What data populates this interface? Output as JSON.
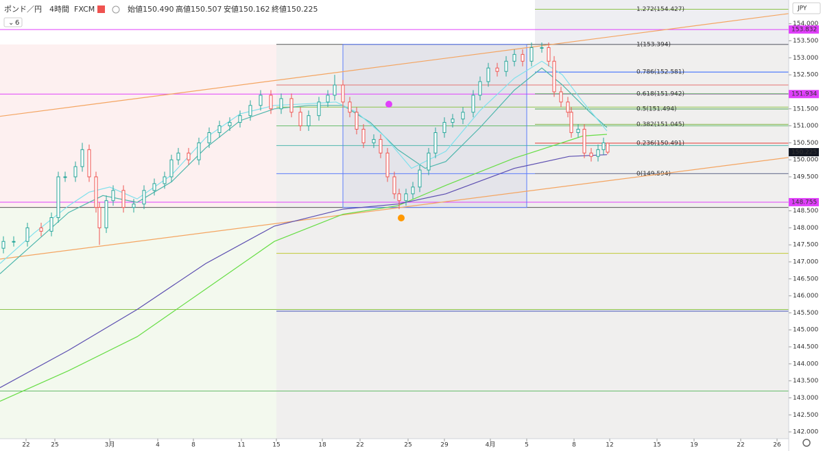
{
  "chart_data": {
    "type": "candlestick",
    "header": {
      "symbol": "ポンド／円",
      "interval": "4時間",
      "source": "FXCM",
      "indicators": "6",
      "currency": "JPY",
      "ohlc": [
        {
          "name": "始値",
          "value": "150.490"
        },
        {
          "name": "高値",
          "value": "150.507"
        },
        {
          "name": "安値",
          "value": "150.162"
        },
        {
          "name": "終値",
          "value": "150.225"
        }
      ]
    },
    "xlim": [
      0,
      230
    ],
    "ylim": [
      141.8,
      154.7
    ],
    "xticks": [
      {
        "value": 7.6,
        "label": "22"
      },
      {
        "value": 16,
        "label": "25"
      },
      {
        "value": 32,
        "label": "3月"
      },
      {
        "value": 46,
        "label": "4"
      },
      {
        "value": 56.4,
        "label": "8"
      },
      {
        "value": 70.4,
        "label": "11"
      },
      {
        "value": 80.6,
        "label": "15"
      },
      {
        "value": 94,
        "label": "18"
      },
      {
        "value": 105,
        "label": "22"
      },
      {
        "value": 119,
        "label": "25"
      },
      {
        "value": 129.6,
        "label": "29"
      },
      {
        "value": 143,
        "label": "4月"
      },
      {
        "value": 153.6,
        "label": "5"
      },
      {
        "value": 167.4,
        "label": "8"
      },
      {
        "value": 177.8,
        "label": "12"
      },
      {
        "value": 191.6,
        "label": "15"
      },
      {
        "value": 202.4,
        "label": "19"
      },
      {
        "value": 216,
        "label": "22"
      },
      {
        "value": 226.6,
        "label": "26"
      }
    ],
    "yticks": [
      {
        "value": 142,
        "label": "142.000"
      },
      {
        "value": 142.5,
        "label": "142.500"
      },
      {
        "value": 143,
        "label": "143.000"
      },
      {
        "value": 143.5,
        "label": "143.500"
      },
      {
        "value": 144,
        "label": "144.000"
      },
      {
        "value": 144.5,
        "label": "144.500"
      },
      {
        "value": 145,
        "label": "145.000"
      },
      {
        "value": 145.5,
        "label": "145.500"
      },
      {
        "value": 146,
        "label": "146.000"
      },
      {
        "value": 146.5,
        "label": "146.500"
      },
      {
        "value": 147,
        "label": "147.000"
      },
      {
        "value": 147.5,
        "label": "147.500"
      },
      {
        "value": 148,
        "label": "148.000"
      },
      {
        "value": 148.5,
        "label": "148.500"
      },
      {
        "value": 149.5,
        "label": "149.500"
      },
      {
        "value": 150,
        "label": "150.000"
      },
      {
        "value": 150.5,
        "label": "150.500"
      },
      {
        "value": 151,
        "label": "151.000"
      },
      {
        "value": 151.5,
        "label": "151.500"
      },
      {
        "value": 152.5,
        "label": "152.500"
      },
      {
        "value": 153,
        "label": "153.000"
      },
      {
        "value": 153.5,
        "label": "153.500"
      },
      {
        "value": 154,
        "label": "154.000"
      }
    ],
    "up_color": "#26a69a",
    "down_color": "#ef5350",
    "x": [
      1,
      4,
      8,
      12,
      15,
      17,
      19,
      22,
      24,
      26,
      28,
      29,
      31,
      33,
      36,
      39,
      42,
      45,
      48,
      50,
      52,
      55,
      58,
      61,
      64,
      67,
      70,
      73,
      76,
      79,
      82,
      85,
      87.6,
      90,
      93,
      95.6,
      97.6,
      100,
      102,
      104,
      106,
      109,
      111,
      113,
      115,
      116.4,
      118.4,
      120.4,
      122.4,
      125,
      127,
      129.6,
      132,
      135,
      138,
      140,
      142.4,
      145,
      147.6,
      150,
      152.4,
      155,
      158,
      160,
      161.6,
      163.6,
      165.6,
      166.6,
      168.6,
      170.4,
      172.4,
      174.4,
      176,
      177.2
    ],
    "open": [
      147.4,
      147.6,
      147.6,
      148.0,
      147.9,
      148.3,
      149.5,
      149.5,
      149.8,
      150.3,
      149.5,
      148.6,
      148.0,
      148.8,
      149.1,
      148.6,
      148.7,
      149.1,
      149.3,
      149.5,
      150.0,
      150.2,
      150.0,
      150.5,
      150.8,
      151.0,
      151.1,
      151.3,
      151.6,
      151.9,
      151.5,
      151.8,
      151.4,
      151.0,
      151.3,
      151.7,
      151.9,
      152.2,
      151.7,
      151.4,
      150.9,
      150.5,
      150.6,
      150.2,
      149.5,
      149.0,
      148.8,
      149.0,
      149.2,
      149.7,
      150.2,
      150.8,
      151.1,
      151.2,
      151.4,
      151.9,
      152.3,
      152.7,
      152.6,
      152.9,
      153.1,
      152.9,
      153.3,
      153.3,
      152.9,
      152.0,
      151.7,
      151.4,
      150.8,
      150.9,
      150.2,
      150.1,
      150.3,
      150.49
    ],
    "high": [
      147.75,
      147.75,
      148.15,
      148.15,
      148.45,
      149.65,
      149.65,
      149.95,
      150.5,
      150.45,
      149.65,
      148.75,
      148.95,
      149.25,
      149.25,
      148.85,
      149.25,
      149.45,
      149.65,
      150.15,
      150.35,
      150.35,
      150.65,
      150.95,
      151.15,
      151.25,
      151.45,
      151.75,
      152.05,
      152.05,
      151.95,
      151.95,
      151.55,
      151.45,
      151.85,
      152.05,
      152.5,
      152.35,
      151.85,
      151.55,
      151.05,
      150.75,
      150.75,
      150.35,
      149.65,
      149.15,
      149.15,
      149.35,
      149.85,
      150.35,
      150.95,
      151.25,
      151.35,
      151.55,
      152.05,
      152.45,
      152.85,
      152.85,
      153.05,
      153.25,
      153.25,
      153.45,
      153.45,
      153.45,
      153.05,
      152.15,
      151.85,
      151.55,
      151.05,
      151.05,
      150.35,
      150.45,
      150.65,
      150.507
    ],
    "low": [
      147.25,
      147.45,
      147.45,
      147.75,
      147.75,
      148.15,
      149.35,
      149.35,
      149.65,
      149.35,
      148.45,
      147.5,
      147.85,
      148.65,
      148.45,
      148.45,
      148.55,
      148.95,
      149.15,
      149.35,
      149.85,
      149.85,
      149.85,
      150.35,
      150.65,
      150.85,
      150.95,
      151.15,
      151.45,
      151.35,
      151.35,
      151.25,
      150.85,
      150.85,
      151.15,
      151.55,
      151.75,
      151.55,
      151.25,
      150.75,
      150.35,
      150.35,
      150.05,
      149.35,
      148.85,
      148.55,
      148.65,
      148.85,
      149.05,
      149.55,
      150.05,
      150.65,
      150.95,
      151.05,
      151.25,
      151.75,
      152.15,
      152.45,
      152.45,
      152.75,
      152.75,
      152.75,
      153.15,
      152.75,
      151.85,
      151.55,
      151.25,
      150.65,
      150.65,
      150.05,
      149.95,
      149.95,
      150.15,
      150.162
    ],
    "close": [
      147.6,
      147.6,
      148.0,
      147.9,
      148.3,
      149.5,
      149.5,
      149.8,
      150.3,
      149.5,
      148.6,
      148.0,
      148.8,
      149.1,
      148.6,
      148.7,
      149.1,
      149.3,
      149.5,
      150.0,
      150.2,
      150.0,
      150.5,
      150.8,
      151.0,
      151.1,
      151.3,
      151.6,
      151.9,
      151.5,
      151.8,
      151.4,
      151.0,
      151.3,
      151.7,
      151.9,
      152.2,
      151.7,
      151.4,
      150.9,
      150.5,
      150.6,
      150.2,
      149.5,
      149.0,
      148.8,
      149.0,
      149.2,
      149.7,
      150.2,
      150.8,
      151.1,
      151.2,
      151.4,
      151.9,
      152.3,
      152.7,
      152.6,
      152.9,
      153.1,
      152.9,
      153.3,
      153.3,
      152.9,
      152.0,
      151.7,
      151.4,
      150.8,
      150.9,
      150.2,
      150.1,
      150.3,
      150.5,
      150.225
    ],
    "zones": [
      {
        "x": [
          0,
          230
        ],
        "y": [
          148.6,
          153.394
        ],
        "color": "#fdf0f0"
      },
      {
        "x": [
          0,
          230
        ],
        "y": [
          141.8,
          148.6
        ],
        "color": "#f3f9ee"
      },
      {
        "x": [
          80.6,
          230
        ],
        "y": [
          141.8,
          153.394
        ],
        "color": "#f0efee"
      },
      {
        "x": [
          156,
          230
        ],
        "y": [
          153.394,
          154.7
        ],
        "color": "#eeeef2"
      },
      {
        "x": [
          100,
          153.6
        ],
        "y": [
          148.6,
          153.394
        ],
        "color": "#e4e4ea"
      }
    ],
    "hlines": [
      {
        "value": 153.394,
        "from": 80.6,
        "color": "#555555"
      },
      {
        "value": 148.6,
        "from": 0,
        "color": "#555555"
      },
      {
        "value": 152.2,
        "from": 80.6,
        "color": "#e57373"
      },
      {
        "value": 151.55,
        "from": 80.6,
        "color": "#8bc34a"
      },
      {
        "value": 151.0,
        "from": 80.6,
        "color": "#66bb6a"
      },
      {
        "value": 150.42,
        "from": 80.6,
        "color": "#4db6ac"
      },
      {
        "value": 149.594,
        "from": 80.6,
        "color": "#5c7cfa"
      },
      {
        "value": 147.25,
        "from": 80.6,
        "color": "#c0ca33"
      },
      {
        "value": 145.55,
        "from": 80.6,
        "color": "#3f51b5"
      },
      {
        "value": 145.6,
        "from": 0,
        "color": "#8bc34a"
      },
      {
        "value": 143.2,
        "from": 0,
        "color": "#66bb6a"
      },
      {
        "value": 153.832,
        "from": 0,
        "color": "#e040fb"
      },
      {
        "value": 151.934,
        "from": 0,
        "color": "#e040fb"
      },
      {
        "value": 148.755,
        "from": 0,
        "color": "#e040fb"
      }
    ],
    "fib_levels": [
      {
        "value": 154.427,
        "label": "1.272(154.427)",
        "color": "#8bc34a"
      },
      {
        "value": 153.394,
        "label": "1(153.394)",
        "color": "#787b86"
      },
      {
        "value": 152.581,
        "label": "0.786(152.581)",
        "color": "#2962ff"
      },
      {
        "value": 151.942,
        "label": "0.618(151.942)",
        "color": "#43a047"
      },
      {
        "value": 151.494,
        "label": "0.5(151.494)",
        "color": "#43a047"
      },
      {
        "value": 151.045,
        "label": "0.382(151.045)",
        "color": "#7cb342"
      },
      {
        "value": 150.491,
        "label": "0.236(150.491)",
        "color": "#e53935"
      },
      {
        "value": 149.594,
        "label": "0(149.594)",
        "color": "#787b86"
      }
    ],
    "lines": [
      {
        "color": "#f4a460",
        "x": [
          0,
          230
        ],
        "values": [
          151.28,
          154.3
        ]
      },
      {
        "color": "#f4a460",
        "x": [
          0,
          230
        ],
        "values": [
          147.08,
          150.07
        ]
      },
      {
        "color": "#66dd44",
        "x": [
          0,
          20,
          40,
          60,
          80,
          100,
          116,
          130,
          150,
          170,
          177
        ],
        "values": [
          142.9,
          143.8,
          144.8,
          146.2,
          147.6,
          148.4,
          148.65,
          149.25,
          150.05,
          150.7,
          150.75
        ]
      },
      {
        "color": "#5b4db0",
        "x": [
          0,
          20,
          40,
          60,
          80,
          100,
          116,
          130,
          150,
          166,
          177
        ],
        "values": [
          143.3,
          144.4,
          145.6,
          146.95,
          148.05,
          148.55,
          148.7,
          149.0,
          149.75,
          150.1,
          150.15
        ]
      },
      {
        "color": "#4db6ac",
        "x": [
          0,
          20,
          30,
          40,
          50,
          60,
          70,
          80,
          90,
          100,
          108,
          116,
          124,
          130,
          140,
          150,
          158,
          164,
          172,
          177
        ],
        "values": [
          146.65,
          148.45,
          148.95,
          148.75,
          149.35,
          150.35,
          151.15,
          151.5,
          151.6,
          151.6,
          151.1,
          150.3,
          149.75,
          149.95,
          150.95,
          152.05,
          152.7,
          152.2,
          151.4,
          150.95
        ]
      },
      {
        "color": "#7fe0ec",
        "x": [
          0,
          10,
          20,
          26,
          32,
          40,
          50,
          60,
          70,
          80,
          90,
          98,
          104,
          112,
          120,
          130,
          140,
          150,
          158,
          164,
          170,
          177
        ],
        "values": [
          146.95,
          147.85,
          148.65,
          149.05,
          149.2,
          148.85,
          149.55,
          150.65,
          151.35,
          151.6,
          151.65,
          151.7,
          151.4,
          150.7,
          149.75,
          150.25,
          151.45,
          152.4,
          152.9,
          152.5,
          151.7,
          150.85
        ]
      }
    ],
    "price_tags": [
      {
        "value": 153.832,
        "color": "#e040fb"
      },
      {
        "value": 151.934,
        "color": "#e040fb"
      },
      {
        "value": 148.755,
        "color": "#e040fb"
      },
      {
        "value": 150.225,
        "color": "#131722"
      }
    ]
  }
}
